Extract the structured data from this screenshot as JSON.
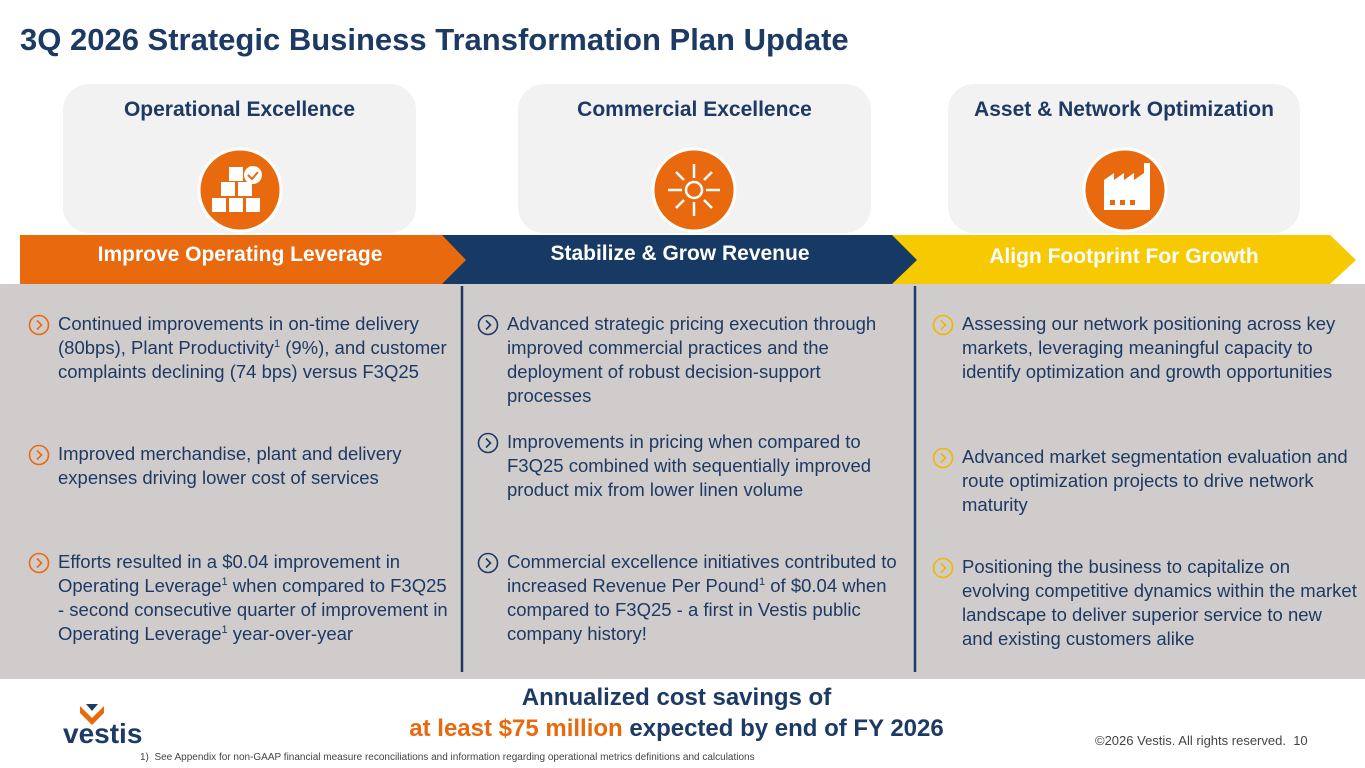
{
  "header": {
    "title": "3Q 2026 Strategic Business Transformation Plan Update"
  },
  "pillars": [
    {
      "title": "Operational Excellence",
      "theme": "Improve Operating Leverage",
      "bullets": [
        [
          {
            "text": "Continued improvements in on-time delivery (80bps), Plant Productivity"
          },
          {
            "sup": "1"
          },
          {
            "text": " (9%), and customer complaints declining (74 bps) versus F3Q25"
          }
        ],
        [
          {
            "text": "Improved merchandise, plant and delivery expenses driving lower cost of services"
          }
        ],
        [
          {
            "text": "Efforts resulted in a $0.04 improvement in Operating Leverage"
          },
          {
            "sup": "1"
          },
          {
            "text": " when compared to F3Q25 - second consecutive quarter of improvement in Operating Leverage"
          },
          {
            "sup": "1"
          },
          {
            "text": " year-over-year"
          }
        ]
      ]
    },
    {
      "title": "Commercial Excellence",
      "theme": "Stabilize & Grow Revenue",
      "bullets": [
        [
          {
            "text": "Advanced strategic pricing execution through improved commercial practices and the deployment of robust decision-support processes"
          }
        ],
        [
          {
            "text": "Improvements in pricing when compared to F3Q25 combined with sequentially improved product mix from lower linen volume"
          }
        ],
        [
          {
            "text": "Commercial excellence initiatives contributed to increased Revenue Per Pound"
          },
          {
            "sup": "1"
          },
          {
            "text": " of $0.04 when compared to F3Q25 - a first in Vestis public company history!"
          }
        ]
      ]
    },
    {
      "title": "Asset & Network Optimization",
      "theme": "Align Footprint For Growth",
      "bullets": [
        [
          {
            "text": "Assessing our network positioning across key markets, leveraging meaningful capacity to identify optimization and growth opportunities"
          }
        ],
        [
          {
            "text": "Advanced market segmentation evaluation and route optimization projects to drive network maturity"
          }
        ],
        [
          {
            "text": "Positioning the business to capitalize on evolving competitive dynamics within the market landscape to deliver superior service to new and existing customers alike"
          }
        ]
      ]
    }
  ],
  "summary": {
    "line1": "Annualized cost savings of",
    "highlight": "at least $75 million",
    "line2": " expected by end of FY 2026"
  },
  "footer": {
    "logo": "vestis",
    "copyright": "©2026 Vestis. All rights reserved.",
    "page": "10",
    "footnote": "1)  See Appendix for non-GAAP financial measure reconciliations and information regarding operational metrics definitions and calculations"
  }
}
